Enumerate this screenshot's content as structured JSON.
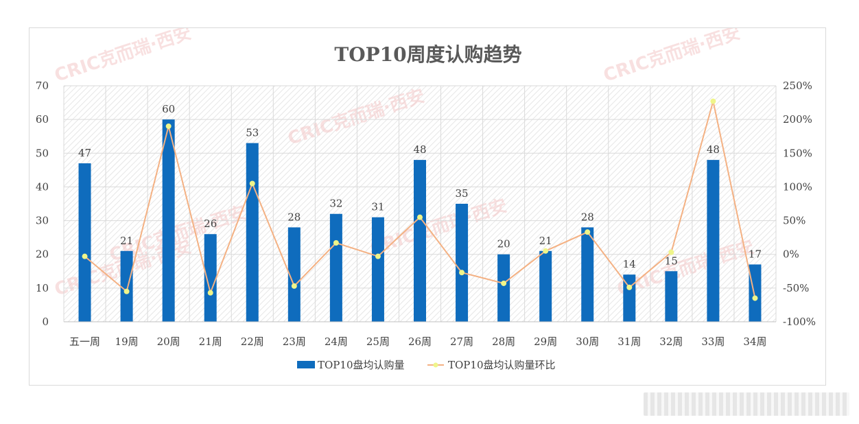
{
  "colors": {
    "bar": "#0F6CBD",
    "line": "#F4B183",
    "marker": "#EFF58A",
    "grid": "#d9d9d9",
    "watermark": "#F2A6A6"
  },
  "watermark_text": "CRIC克而瑞·西安",
  "chart_data": {
    "type": "bar",
    "title": "TOP10周度认购趋势",
    "categories": [
      "五一周",
      "19周",
      "20周",
      "21周",
      "22周",
      "23周",
      "24周",
      "25周",
      "26周",
      "27周",
      "28周",
      "29周",
      "30周",
      "31周",
      "32周",
      "33周",
      "34周"
    ],
    "ylim": [
      0,
      70
    ],
    "yticks": [
      "0",
      "10",
      "20",
      "30",
      "40",
      "50",
      "60",
      "70"
    ],
    "y2lim": [
      -100,
      250
    ],
    "y2ticks": [
      "-100%",
      "-50%",
      "0%",
      "50%",
      "100%",
      "150%",
      "200%",
      "250%"
    ],
    "series": [
      {
        "name": "TOP10盘均认购量",
        "type": "bar",
        "axis": "left",
        "values": [
          47,
          21,
          60,
          26,
          53,
          28,
          32,
          31,
          48,
          35,
          20,
          21,
          28,
          14,
          15,
          48,
          17
        ]
      },
      {
        "name": "TOP10盘均认购量环比",
        "type": "line",
        "axis": "right",
        "values": [
          -3,
          -55,
          190,
          -57,
          105,
          -47,
          17,
          -3,
          55,
          -27,
          -43,
          5,
          33,
          -49,
          3,
          227,
          -65
        ]
      }
    ],
    "legend": "bottom",
    "grid": true
  }
}
